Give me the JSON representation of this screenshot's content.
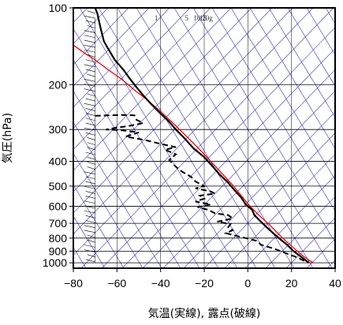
{
  "chart_data": {
    "type": "line",
    "xlabel": "気温(実線), 露点(破線)",
    "ylabel": "気圧(hPa)",
    "xlim": [
      -80,
      40
    ],
    "ylim": [
      1050,
      100
    ],
    "y_scale": "log",
    "x_ticks": [
      "−80",
      "−60",
      "−40",
      "−20",
      "0",
      "20",
      "40"
    ],
    "x_tick_values": [
      -80,
      -60,
      -40,
      -20,
      0,
      20,
      40
    ],
    "y_ticks": [
      "100",
      "200",
      "300",
      "400",
      "500",
      "600",
      "700",
      "800",
      "900",
      "1000"
    ],
    "y_tick_values": [
      100,
      200,
      300,
      400,
      500,
      600,
      700,
      800,
      900,
      1000
    ],
    "mixing_ratio_labels": [
      "1",
      "5",
      "10",
      "15",
      "20g"
    ],
    "mixing_ratio_values": [
      1,
      5,
      10,
      15,
      20
    ],
    "colors": {
      "temperature": "#000000",
      "dewpoint": "#000000",
      "parcel": "#ff0000",
      "reference_lines": "#3333cc",
      "grid": "#000000"
    },
    "series": [
      {
        "name": "",
        "role": "temperature",
        "style": "solid",
        "points": [
          [
            -70,
            100
          ],
          [
            -69,
            105
          ],
          [
            -68,
            115
          ],
          [
            -67,
            125
          ],
          [
            -66,
            135
          ],
          [
            -64,
            145
          ],
          [
            -61,
            160
          ],
          [
            -57,
            175
          ],
          [
            -54,
            190
          ],
          [
            -51,
            205
          ],
          [
            -48,
            220
          ],
          [
            -44,
            240
          ],
          [
            -40,
            260
          ],
          [
            -36,
            280
          ],
          [
            -33,
            300
          ],
          [
            -29,
            325
          ],
          [
            -25,
            355
          ],
          [
            -20,
            385
          ],
          [
            -16,
            420
          ],
          [
            -13,
            450
          ],
          [
            -9,
            485
          ],
          [
            -6,
            520
          ],
          [
            -3,
            555
          ],
          [
            -1,
            590
          ],
          [
            2,
            620
          ],
          [
            3,
            650
          ],
          [
            6,
            690
          ],
          [
            9,
            730
          ],
          [
            12,
            770
          ],
          [
            15,
            810
          ],
          [
            18,
            850
          ],
          [
            21,
            900
          ],
          [
            25,
            955
          ],
          [
            28,
            1000
          ]
        ]
      },
      {
        "name": "",
        "role": "dewpoint",
        "style": "dashed",
        "points": [
          [
            -70,
            265
          ],
          [
            -58,
            263
          ],
          [
            -52,
            264
          ],
          [
            -51,
            275
          ],
          [
            -48,
            283
          ],
          [
            -54,
            290
          ],
          [
            -60,
            295
          ],
          [
            -65,
            300
          ],
          [
            -58,
            302
          ],
          [
            -50,
            308
          ],
          [
            -56,
            320
          ],
          [
            -47,
            330
          ],
          [
            -41,
            340
          ],
          [
            -33,
            352
          ],
          [
            -38,
            360
          ],
          [
            -33,
            375
          ],
          [
            -36,
            395
          ],
          [
            -33,
            420
          ],
          [
            -30,
            440
          ],
          [
            -26,
            460
          ],
          [
            -24,
            480
          ],
          [
            -20,
            500
          ],
          [
            -24,
            510
          ],
          [
            -17,
            525
          ],
          [
            -15,
            535
          ],
          [
            -22,
            545
          ],
          [
            -20,
            560
          ],
          [
            -24,
            575
          ],
          [
            -17,
            590
          ],
          [
            -23,
            605
          ],
          [
            -18,
            620
          ],
          [
            -15,
            640
          ],
          [
            -9,
            650
          ],
          [
            -7,
            670
          ],
          [
            -14,
            690
          ],
          [
            -8,
            705
          ],
          [
            -9,
            725
          ],
          [
            -7,
            745
          ],
          [
            -10,
            765
          ],
          [
            -5,
            785
          ],
          [
            -1,
            800
          ],
          [
            4,
            820
          ],
          [
            6,
            850
          ],
          [
            12,
            880
          ],
          [
            18,
            920
          ],
          [
            23,
            955
          ],
          [
            26,
            985
          ],
          [
            27,
            1000
          ]
        ]
      },
      {
        "name": "",
        "role": "parcel",
        "style": "solid",
        "points": [
          [
            -80,
            140
          ],
          [
            -75,
            150
          ],
          [
            -70,
            160
          ],
          [
            -64,
            175
          ],
          [
            -58,
            190
          ],
          [
            -52,
            210
          ],
          [
            -46,
            230
          ],
          [
            -40,
            255
          ],
          [
            -34,
            285
          ],
          [
            -28,
            320
          ],
          [
            -22,
            360
          ],
          [
            -17,
            400
          ],
          [
            -12,
            445
          ],
          [
            -7,
            495
          ],
          [
            -3,
            545
          ],
          [
            1,
            600
          ],
          [
            5,
            650
          ],
          [
            10,
            710
          ],
          [
            14,
            770
          ],
          [
            18,
            830
          ],
          [
            22,
            890
          ],
          [
            26,
            950
          ],
          [
            30,
            1000
          ]
        ]
      }
    ]
  }
}
